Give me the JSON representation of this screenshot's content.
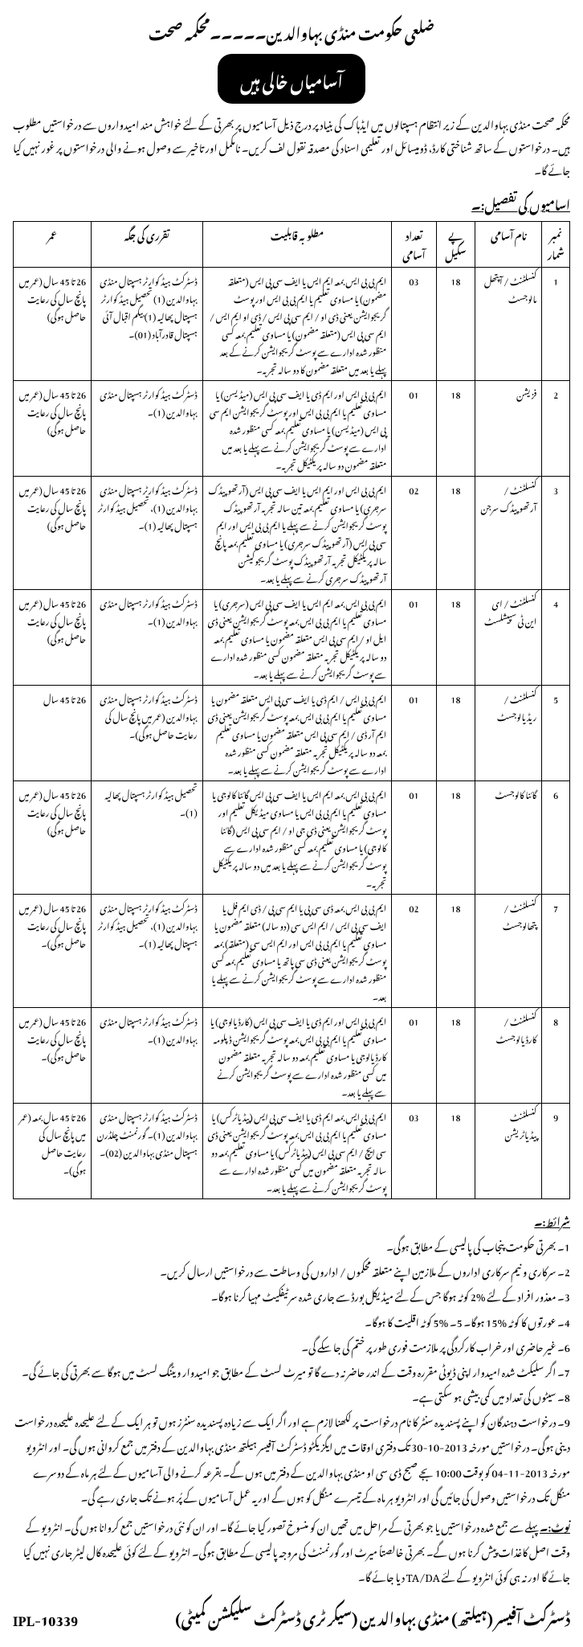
{
  "header": "ضلعی حکومت منڈی بہاوالدین۔۔۔۔۔محکمہ صحت",
  "banner": "آسامیاں خالی ہیں",
  "intro": "محکمہ صحت منڈی بہاوالدین کے زیر انتظام ہسپتالوں میں ایڈہاک کی بنیاد پر درج ذیل آسامیوں پر بھرتی کے لئے خواہش مند امیدواروں سے درخواستیں مطلوب ہیں۔ درخواستوں کے ساتھ شناختی کارڈ، ڈومیسائل اور تعلیمی اسناد کی مصدقہ نقول لف کریں۔ نامکمل اور تاخیر سے وصول ہونے والی درخواستوں پر غور نہیں کیا جائے گا۔",
  "label": "اسامیوں کی تفصیل:۔",
  "table": {
    "headers": {
      "sr": "نمبر شمار",
      "name": "نام آسامی",
      "scale": "پے سکیل",
      "count": "تعداد آسامی",
      "qual": "مطلوبہ قابلیت",
      "place": "تقرری کی جگہ",
      "age": "عمر"
    },
    "rows": [
      {
        "sr": "1",
        "name": "کنسلٹنٹ / آپتھل مالوجسٹ",
        "scale": "18",
        "count": "03",
        "qual": "ایم بی بی ایس بمعہ ایم ایس یا ایف سی پی ایس (متعلقہ مضمون) یا مساوی تعلیم یا ایم بی بی ایس اور پوسٹ گریجوایشن یعنی ڈی او / ایم سی پی ایس / ڈی او ایم ایس / ایم سی پی ایس (متعلقہ مضمون) یا مساوی تعلیم بمعہ کسی منظور شدہ ادارے سے پوسٹ گریجوایشن کرنے کے بعد پہلے یا بعد میں متعلقہ مضمون کا دو سالہ تجربہ۔",
        "place": "ڈسٹرکٹ ہیڈ کوارٹر ہسپتال منڈی بہاوالدین (1) تحصیل ہیڈ کوارٹر ہسپتال پھالیہ (1) بیگم اقبال آئی ہسپتال قادرآباد (01)۔",
        "age": "26 تا 45 سال (عمر میں پانچ سال کی رعایت حاصل ہوگی)"
      },
      {
        "sr": "2",
        "name": "فزیشن",
        "scale": "18",
        "count": "01",
        "qual": "ایم بی بی ایس اور ایم ڈی یا ایف سی پی ایس (میڈیسن) یا مساوی تعلیم یا ایم بی بی ایس اور پوسٹ گریجوایشن ایم سی پی ایس (میڈیسن) یا مساوی تعلیم بمعہ کسی منظور شدہ ادارے سے پوسٹ گریجوایشن کرنے سے پہلے یا بعد میں متعلقہ مضمون دو سالہ پریکٹیکل تجربہ۔",
        "place": "ڈسٹرکٹ ہیڈ کوارٹر ہسپتال منڈی بہاوالدین (1)۔",
        "age": "26 تا 45 سال (عمر میں پانچ سال کی رعایت حاصل ہوگی)"
      },
      {
        "sr": "3",
        "name": "کنسلٹنٹ / آرتھوپیڈک سرجن",
        "scale": "18",
        "count": "02",
        "qual": "ایم بی بی ایس اور ایم ایس یا ایف سی پی ایس (آرتھوپیڈک سرجری) یا مساوی تعلیم بمعہ تین سالہ تجربہ آرتھوپیڈک پوسٹ گریجوایشن کرنے سے پہلے یا ایم بی بی ایس اور ایم سی پی ایس (آرتھوپیڈک سرجری) یا مساوی تعلیم بمعہ پانچ سالہ پریکٹیکل تجربہ آرتھوپیڈک پوسٹ گریجوکیشن آرتھوپیڈک سرجری کرنے سے پہلے یا بعد۔",
        "place": "ڈسٹرکٹ ہیڈ کوارٹر ہسپتال منڈی بہاوالدین (1)، تحصیل ہیڈ کوارٹر ہسپتال پھالیہ (1)۔",
        "age": "26 تا 45 سال (عمر میں پانچ سال کی رعایت حاصل ہوگی)"
      },
      {
        "sr": "4",
        "name": "کنسلٹنٹ / ای این ٹی سپیشلسٹ",
        "scale": "18",
        "count": "01",
        "qual": "ایم بی بی ایس بمعہ ایم ایس یا ایف سی پی ایس (سرجری) یا مساوی تعلیم یا ایم بی بی ایس بمعہ پوسٹ گریجوایشن یعنی ڈی ایل او / ایم سی پی ایس متعلقہ مضمون یا مساوی تعلیم بمعہ دو سالہ پریکٹیکل تجربہ متعلقہ مضمون کسی منظور شدہ ادارے سے پوسٹ گریجوایشن کرنے سے پہلے یا بعد۔",
        "place": "ڈسٹرکٹ ہیڈ کوارٹر ہسپتال منڈی بہاوالدین (1)۔",
        "age": "26 تا 45 سال (عمر میں پانچ سال کی رعایت حاصل ہوگی)"
      },
      {
        "sr": "5",
        "name": "کنسلٹنٹ / ریڈیالوجسٹ",
        "scale": "18",
        "count": "01",
        "qual": "ایم بی بی ایس / ایم ڈی یا ایف سی پی ایس متعلقہ مضمون یا مساوی تعلیم یا ایم بی بی ایس بمعہ پوسٹ گریجوایشن یعنی ڈی ایم آر ڈی / ایم سی پی ایس متعلقہ مضمون یا مساوی تعلیم بمعہ دو سالہ پریکٹیکل تجربہ متعلقہ مضمون کسی منظور شدہ ادارے سے پوسٹ گریجوایشن کرنے سے پہلے یا بعد۔",
        "place": "ڈسٹرکٹ ہیڈ کوارٹر ہسپتال منڈی بہاوالدین (عمر میں پانچ سال کی رعایت حاصل ہوگی)۔",
        "age": "26 تا 45 سال"
      },
      {
        "sr": "6",
        "name": "گائنا کالوجسٹ",
        "scale": "18",
        "count": "01",
        "qual": "ایم بی بی ایس بمعہ ایم ایس یا ایف سی پی ایس گائنا کالوجی یا مساوی تعلیم یا ایم بی بی ایس یا مساوی میڈیکل تعلیم اور پوسٹ گریجوایشن یعنی ڈی جی او / ایم سی پی ایس (گائنا کالوجی) یا مساوی تعلیم بمعہ کسی منظور شدہ ادارے سے پوسٹ گریجوایشن کرنے سے پہلے یا بعد میں دو سالہ پریکٹیکل تجربہ۔",
        "place": "تحصیل ہیڈ کوارٹر ہسپتال پھالیہ (1)۔",
        "age": "26 تا 45 سال (عمر میں پانچ سال کی رعایت حاصل ہوگی)"
      },
      {
        "sr": "7",
        "name": "کنسلٹنٹ / پتھالوجسٹ",
        "scale": "18",
        "count": "02",
        "qual": "ایم بی بی ایس بمعہ ڈی سی پی یا ایم سی پی / ڈی ایم فل یا ایف سی پی ایس / ایم ایس سی (دو سالہ) متعلقہ مضمون یا مساوی تعلیم یا ایم بی بی ایس اور ایم ایس سی (متعلقہ) بمعہ پوسٹ گریجوایشن یعنی ڈی سی پاتھ یا مساوی تعلیم بمعہ کسی منظور شدہ ادارے سے پوسٹ گریجوایشن کرنے سے پہلے یا بعد۔",
        "place": "ڈسٹرکٹ ہیڈ کوارٹر ہسپتال منڈی بہاوالدین (1)، تحصیل ہیڈ کوارٹر ہسپتال پھالیہ (1)۔",
        "age": "26 تا 45 سال (عمر میں پانچ سال کی رعایت حاصل ہوگی)۔"
      },
      {
        "sr": "8",
        "name": "کنسلٹنٹ / کارڈیالوجسٹ",
        "scale": "18",
        "count": "01",
        "qual": "ایم بی بی ایس اور ایم ڈی یا ایف سی پی ایس (کارڈیالوجی) یا مساوی تعلیم یا ایم بی بی ایس بمعہ پوسٹ گریجوایشن ڈپلومہ کارڈیالوجی یا مساوی تعلیم بمعہ دو سالہ تجربہ متعلقہ مضمون میں کسی منظور شدہ ادارے سے پوسٹ گریجوایشن کرنے سے پہلے یا بعد۔",
        "place": "ڈسٹرکٹ ہیڈ کوارٹر ہسپتال منڈی بہاوالدین (1)۔",
        "age": "26 تا 45 سال (عمر میں پانچ سال کی رعایت حاصل ہوگی)۔"
      },
      {
        "sr": "9",
        "name": "کنسلٹنٹ پیڈیاٹریشن",
        "scale": "18",
        "count": "03",
        "qual": "ایم بی بی ایس بمعہ ایم ڈی یا ایف سی پی ایس (پیڈیاٹرکس) یا مساوی تعلیم یا ایم بی بی ایس بمعہ پوسٹ گریجوایشن یعنی ڈی سی ایچ / ایم سی پی ایس (پیڈیاٹرکس) یا مساوی تعلیم بمعہ دو سالہ تجربہ متعلقہ مضمون میں کسی منظور شدہ ادارے سے پوسٹ گریجوایشن کرنے سے پہلے یا بعد۔",
        "place": "ڈسٹرکٹ ہیڈ کوارٹر ہسپتال منڈی بہاوالدین (1)۔ گورنمنٹ چلڈرن ہسپتال منڈی بہاوالدین (02)۔",
        "age": "26 تا 45 سال بمعہ (عمر میں پانچ سال کی رعایت حاصل ہوگی)۔"
      }
    ]
  },
  "conditions": {
    "lead": "شرائط:۔",
    "items": [
      "1۔ بھرتی حکومت پنجاب کی پالیسی کے مطابق ہوگی۔",
      "2۔ سرکاری و نیم سرکاری اداروں کے ملازمین اپنے متعلقہ محکموں / اداروں کی وساطت سے درخواستیں ارسال کریں۔",
      "3۔ معذور افراد کے لئے %2 کوٹہ ہوگا جس کے لئے میڈیکل بورڈ سے جاری شدہ سرٹیفکیٹ مہیا کرنا ہوگا۔",
      "4۔ عورتوں کا کوٹہ %15 ہوگا۔    5۔ %5 کوٹہ اقلیت کا ہوگا۔",
      "6۔ غیر حاضری اور خراب کارکردگی پر ملازمت فوری طور پر ختم کی جا سکے گی۔",
      "7۔ اگر سلیکٹ شدہ امیدوار اپنی ڈیوٹی مقررہ وقت کے اندر حاضر نہ دے گا تو میرٹ لسٹ کے مطابق جو امیدوار ویٹنگ لسٹ میں ہوگا سے بھرتی کی جائے گی۔",
      "8۔ سیٹوں کی تعداد میں کمی بیشی ہو سکتی ہے۔",
      "9۔ درخواست دہندگان کو اپنے پسندیدہ سنٹر کا نام درخواست پر لکھنا لازم ہے اور اگر ایک سے زیادہ پسندیدہ سنٹرز ہوں تو ہر ایک کے لئے علیحدہ علیحدہ درخواست دینی ہوگی۔ درخواستیں مورخہ 2013-10-30 تک دفتری اوقات میں ایگزیکٹو ڈسٹرکٹ آفیسر ہیلتھ منڈی بہاوالدین کے دفتر میں جمع کروانی ہوں گی۔ اور انٹرویو مورخہ 2013-11-04 کو بوقت 10:00 بجے صبح ڈی سی او منڈی بہاوالدین کے دفتر میں ہوں گے۔ بقرعہ کرنے والی آسامیوں کے لئے ہر ماہ کے دوسرے منگل تک درخواستیں وصول کی جائیں گی اور انٹرویو ہر ماہ کے تیسرے منگل کو ہوں گے اور یہ عمل آسامیوں کے پُر ہونے تک جاری رہے گی۔"
    ]
  },
  "note": {
    "lead": "نوٹ:۔",
    "text": "پہلے سے جمع شدہ درخواستیں یا جو بھرتی کے مراحل میں تھیں ان کو منسوخ تصور کیا جائے گا۔ اور ان کو نئی درخواستیں جمع کروانا ہوں گی۔ انٹرویو کے وقت اصل کاغذات پیش کرنا ہوں گے۔ بھرتی خالصتاً میرٹ اور گورنمنٹ کی مروجہ پالیسی کے مطابق ہوگی۔ انٹرویو کے لئے کوئی علیحدہ کال لیٹر جاری نہیں کیا جائے گا اور نہ ہی کوئی انٹرویو کے لئے TA/DA دیا جائے گا۔"
  },
  "ipl": "IPL-10339",
  "signatory": "ڈسٹرکٹ آفیسر (ہیلتھ) منڈی بہاوالدین (سیکرٹری ڈسٹرکٹ سلیکشن کمیٹی)"
}
